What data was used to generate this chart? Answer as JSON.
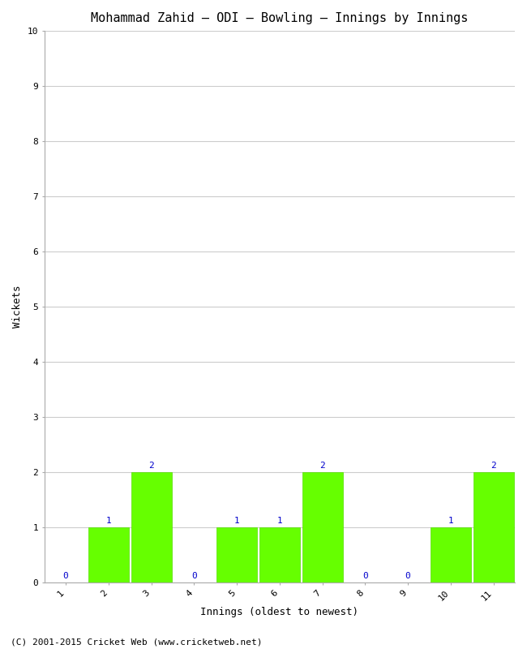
{
  "title": "Mohammad Zahid – ODI – Bowling – Innings by Innings",
  "xlabel": "Innings (oldest to newest)",
  "ylabel": "Wickets",
  "categories": [
    1,
    2,
    3,
    4,
    5,
    6,
    7,
    8,
    9,
    10,
    11
  ],
  "values": [
    0,
    1,
    2,
    0,
    1,
    1,
    2,
    0,
    0,
    1,
    2
  ],
  "bar_color": "#66ff00",
  "bar_edge_color": "#55dd00",
  "ylim": [
    0,
    10
  ],
  "yticks": [
    0,
    1,
    2,
    3,
    4,
    5,
    6,
    7,
    8,
    9,
    10
  ],
  "label_color": "#0000cc",
  "label_fontsize": 8,
  "title_fontsize": 11,
  "axis_label_fontsize": 9,
  "tick_fontsize": 8,
  "background_color": "#ffffff",
  "grid_color": "#cccccc",
  "footer_text": "(C) 2001-2015 Cricket Web (www.cricketweb.net)",
  "footer_fontsize": 8,
  "font_family": "monospace",
  "bar_width": 0.95
}
